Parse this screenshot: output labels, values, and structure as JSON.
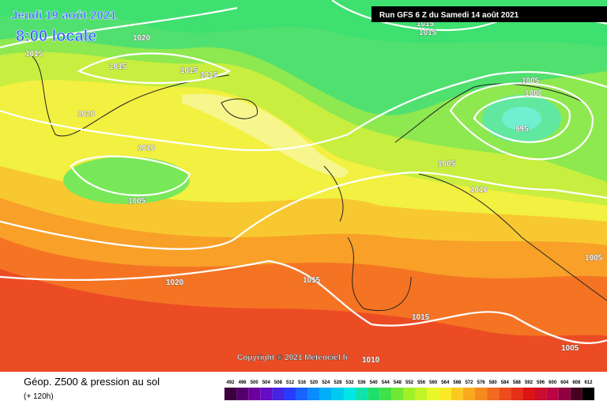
{
  "header": {
    "date": "Jeudi 19 août 2021",
    "time": "8:00 locale",
    "run": "Run GFS 6 Z du Samedi 14 août 2021"
  },
  "isobar_labels": [
    "1015",
    "1015",
    "1020",
    "1015",
    "1015",
    "1015",
    "1015",
    "1005",
    "1000",
    "1020",
    "995",
    "1010",
    "1005",
    "1010",
    "1005",
    "1005",
    "1020",
    "1015",
    "1015",
    "1005",
    "1010"
  ],
  "copyright": "Copyright © 2021 Meteociel.fr",
  "legend": {
    "title": "Géop. Z500 & pression au sol",
    "lead_time": "(+ 120h)",
    "scale": [
      492,
      496,
      500,
      504,
      508,
      512,
      516,
      520,
      524,
      528,
      532,
      536,
      540,
      544,
      548,
      552,
      556,
      560,
      564,
      568,
      572,
      576,
      580,
      584,
      588,
      592,
      596,
      600,
      604,
      608,
      612
    ]
  }
}
